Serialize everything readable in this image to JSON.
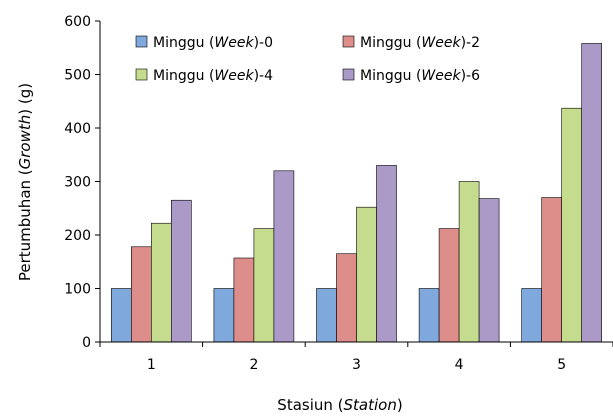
{
  "chart_data": {
    "type": "bar",
    "categories": [
      "1",
      "2",
      "3",
      "4",
      "5"
    ],
    "series": [
      {
        "name": "Minggu (Week)-0",
        "name_main": "Minggu (",
        "name_italic": "Week",
        "name_suffix": ")-0",
        "color": "#7fa8dc",
        "values": [
          100,
          100,
          100,
          100,
          100
        ]
      },
      {
        "name": "Minggu (Week)-2",
        "name_main": "Minggu (",
        "name_italic": "Week",
        "name_suffix": ")-2",
        "color": "#dd8d8a",
        "values": [
          178,
          157,
          165,
          212,
          270
        ]
      },
      {
        "name": "Minggu (Week)-4",
        "name_main": "Minggu (",
        "name_italic": "Week",
        "name_suffix": ")-4",
        "color": "#c5dc8e",
        "values": [
          222,
          212,
          252,
          300,
          437
        ]
      },
      {
        "name": "Minggu (Week)-6",
        "name_main": "Minggu (",
        "name_italic": "Week",
        "name_suffix": ")-6",
        "color": "#ab99c8",
        "values": [
          265,
          320,
          330,
          268,
          558
        ]
      }
    ],
    "xlabel": "Stasiun (Station)",
    "xlabel_main": "Stasiun (",
    "xlabel_italic": "Station",
    "xlabel_suffix": ")",
    "ylabel": "Pertumbuhan (Growth) (g)",
    "ylabel_main": "Pertumbuhan (",
    "ylabel_italic": "Growth",
    "ylabel_suffix": ") (g)",
    "ylim": [
      0,
      600
    ],
    "yticks": [
      "0",
      "100",
      "200",
      "300",
      "400",
      "500",
      "600"
    ],
    "grid": false,
    "legend_position": "top-left"
  }
}
